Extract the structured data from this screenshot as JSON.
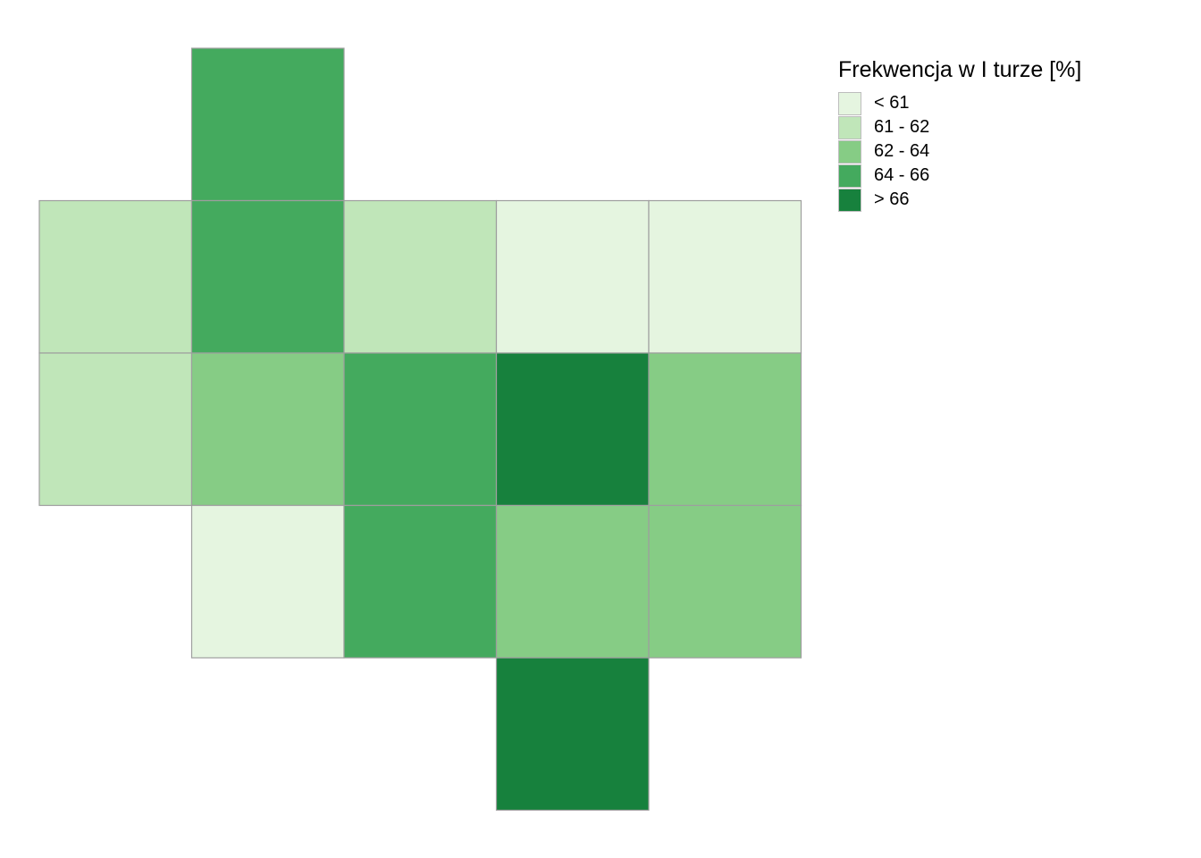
{
  "chart_data": {
    "type": "heatmap",
    "title": "",
    "legend": {
      "title": "Frekwencja w I turze [%]",
      "placement": "top-right",
      "classes": [
        {
          "label": "< 61",
          "color": "#e5f5e0"
        },
        {
          "label": "61 - 62",
          "color": "#c0e6b9"
        },
        {
          "label": "62 - 64",
          "color": "#86cc85"
        },
        {
          "label": "64 - 66",
          "color": "#44aa5e"
        },
        {
          "label": "> 66",
          "color": "#17813d"
        }
      ]
    },
    "grid": {
      "columns": 5,
      "rows": 5
    },
    "tiles": [
      {
        "col": 1,
        "row": 0,
        "class": 3
      },
      {
        "col": 0,
        "row": 1,
        "class": 1
      },
      {
        "col": 1,
        "row": 1,
        "class": 3
      },
      {
        "col": 2,
        "row": 1,
        "class": 1
      },
      {
        "col": 3,
        "row": 1,
        "class": 0
      },
      {
        "col": 4,
        "row": 1,
        "class": 0
      },
      {
        "col": 0,
        "row": 2,
        "class": 1
      },
      {
        "col": 1,
        "row": 2,
        "class": 2
      },
      {
        "col": 2,
        "row": 2,
        "class": 3
      },
      {
        "col": 3,
        "row": 2,
        "class": 4
      },
      {
        "col": 4,
        "row": 2,
        "class": 2
      },
      {
        "col": 1,
        "row": 3,
        "class": 0
      },
      {
        "col": 2,
        "row": 3,
        "class": 3
      },
      {
        "col": 3,
        "row": 3,
        "class": 2
      },
      {
        "col": 4,
        "row": 3,
        "class": 2
      },
      {
        "col": 3,
        "row": 4,
        "class": 4
      }
    ]
  }
}
